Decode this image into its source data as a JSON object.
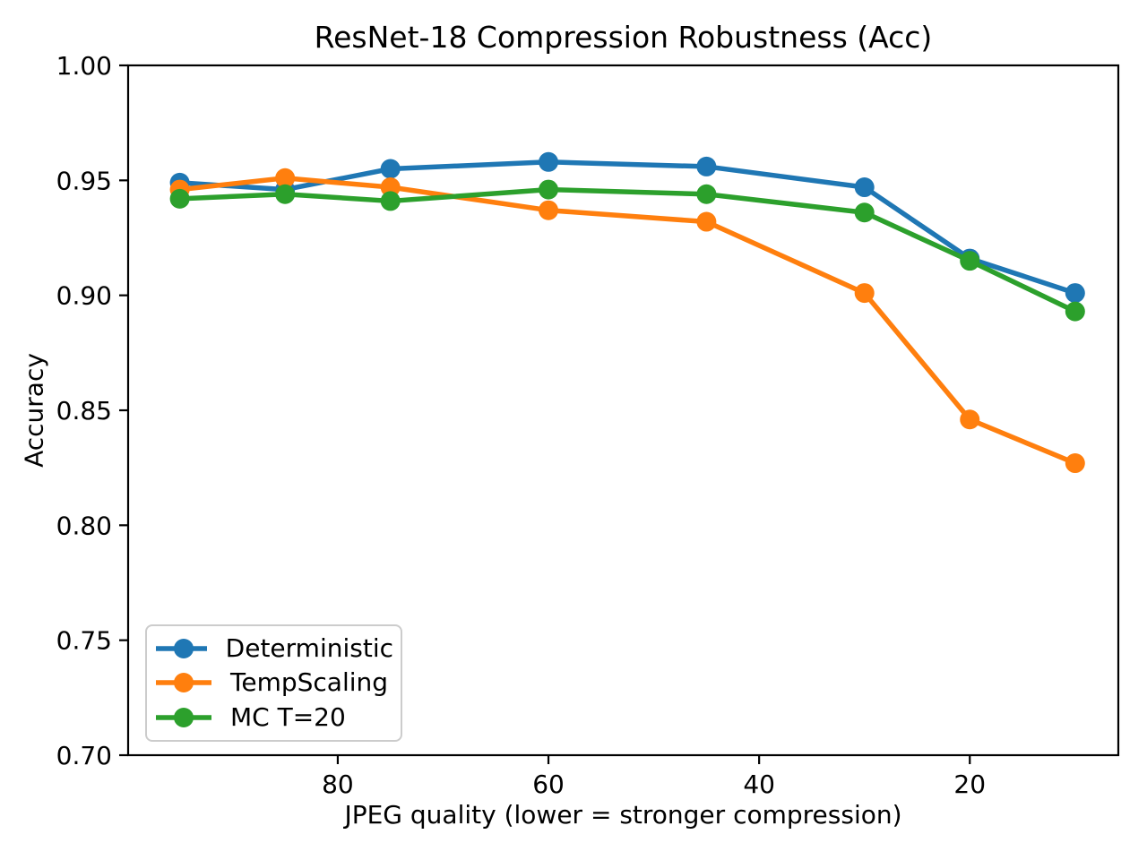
{
  "chart_data": {
    "type": "line",
    "title": "ResNet-18 Compression Robustness (Acc)",
    "xlabel": "JPEG quality (lower = stronger compression)",
    "ylabel": "Accuracy",
    "x": [
      95,
      85,
      75,
      60,
      45,
      30,
      20,
      10
    ],
    "series": [
      {
        "name": "Deterministic",
        "color": "#1f77b4",
        "values": [
          0.949,
          0.946,
          0.955,
          0.958,
          0.956,
          0.947,
          0.916,
          0.901
        ]
      },
      {
        "name": "TempScaling",
        "color": "#ff7f0e",
        "values": [
          0.946,
          0.951,
          0.947,
          0.937,
          0.932,
          0.901,
          0.846,
          0.827
        ]
      },
      {
        "name": "MC T=20",
        "color": "#2ca02c",
        "values": [
          0.942,
          0.944,
          0.941,
          0.946,
          0.944,
          0.936,
          0.915,
          0.893
        ]
      }
    ],
    "x_ticks": [
      80,
      60,
      40,
      20
    ],
    "x_tick_labels": [
      "80",
      "60",
      "40",
      "20"
    ],
    "y_ticks": [
      1.0,
      0.95,
      0.9,
      0.85,
      0.8,
      0.75,
      0.7
    ],
    "y_tick_labels": [
      "1.00",
      "0.95",
      "0.90",
      "0.85",
      "0.80",
      "0.75",
      "0.70"
    ],
    "xlim": [
      99.9,
      5.9
    ],
    "x_inverted": true,
    "ylim": [
      0.7,
      1.0
    ],
    "grid": false,
    "legend_position": "lower left",
    "background": "#ffffff",
    "axis_color": "#000000"
  }
}
